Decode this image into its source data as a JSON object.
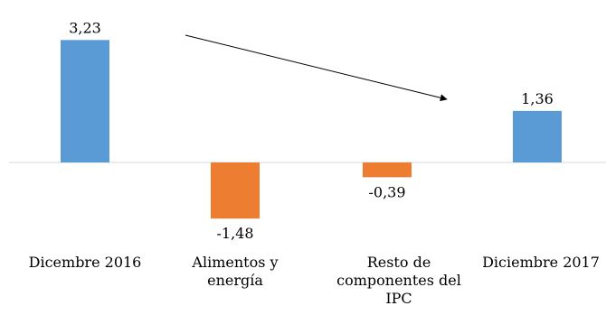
{
  "chart_data": {
    "type": "bar",
    "categories": [
      "Dicembre 2016",
      "Alimentos y energía",
      "Resto de componentes del IPC",
      "Diciembre 2017"
    ],
    "values": [
      3.23,
      -1.48,
      -0.39,
      1.36
    ],
    "data_labels": [
      "3,23",
      "-1,48",
      "-0,39",
      "1,36"
    ],
    "colors": [
      "#5b9bd5",
      "#ed7d31",
      "#ed7d31",
      "#5b9bd5"
    ],
    "title": "",
    "xlabel": "",
    "ylabel": "",
    "grid": false,
    "legend": "none",
    "annotation": "downward-trend-arrow"
  }
}
